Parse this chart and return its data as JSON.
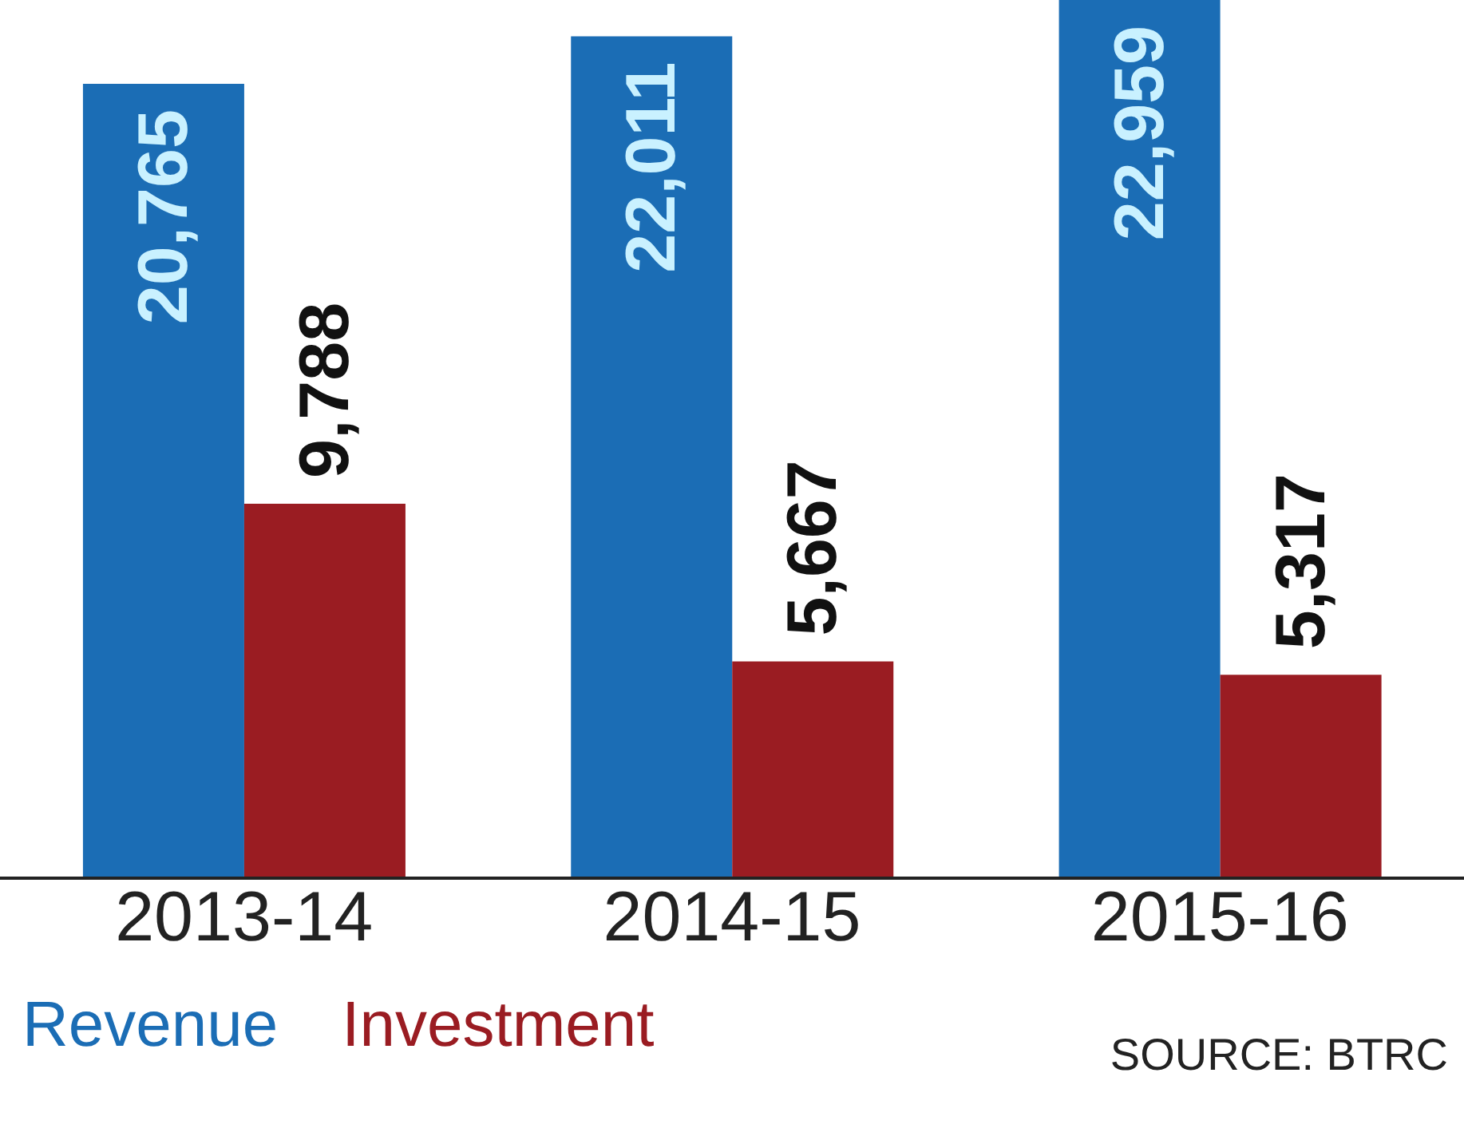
{
  "chart_data": {
    "type": "bar",
    "categories": [
      "2013-14",
      "2014-15",
      "2015-16"
    ],
    "series": [
      {
        "name": "Revenue",
        "color": "#1b6db5",
        "values": [
          20765,
          22011,
          22959
        ],
        "value_labels": [
          "20,765",
          "22,011",
          "22,959"
        ]
      },
      {
        "name": "Investment",
        "color": "#9a1c22",
        "values": [
          9788,
          5667,
          5317
        ],
        "value_labels": [
          "9,788",
          "5,667",
          "5,317"
        ]
      }
    ],
    "legend": "bottom left",
    "annotations": [
      "SOURCE: BTRC"
    ]
  }
}
